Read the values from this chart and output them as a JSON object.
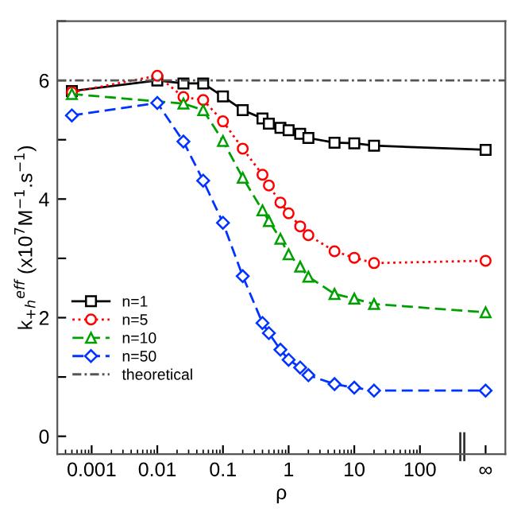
{
  "chart_data": {
    "type": "line",
    "xlabel": "ρ",
    "ylabel": "k$_{+h}$$^{eff}$ (x10$^{7}$M$^{−1}$.s$^{−1}$)",
    "log": "x",
    "xlim": [
      0.0003,
      2000
    ],
    "ylim": [
      -0.3,
      7
    ],
    "xticks": [
      0.001,
      0.01,
      0.1,
      1,
      10,
      100,
      {
        "value": 1000,
        "label": "∞"
      }
    ],
    "yticks": [
      0,
      {
        "value": 1,
        "label": null
      },
      2,
      {
        "value": 3,
        "label": null
      },
      4,
      {
        "value": 5,
        "label": null
      },
      6,
      {
        "value": 7,
        "label": null
      }
    ],
    "grid": false,
    "legend": "bottom left",
    "series": [
      {
        "name": "n=1",
        "color": "#000000",
        "marker": "square",
        "line_style": "solid",
        "x": [
          0.0005,
          0.01,
          0.025,
          0.05,
          0.1,
          0.2,
          0.4,
          0.5,
          0.75,
          1,
          1.5,
          2,
          5,
          10,
          20,
          1000
        ],
        "values": [
          5.82,
          6.0,
          5.95,
          5.95,
          5.73,
          5.5,
          5.36,
          5.27,
          5.2,
          5.16,
          5.1,
          5.03,
          4.95,
          4.94,
          4.9,
          4.83
        ]
      },
      {
        "name": "n=5",
        "color": "#ff0000",
        "marker": "circle",
        "line_style": "dotted",
        "x": [
          0.0005,
          0.01,
          0.025,
          0.05,
          0.1,
          0.2,
          0.4,
          0.5,
          0.75,
          1,
          1.5,
          2,
          5,
          10,
          20,
          1000
        ],
        "values": [
          5.8,
          6.08,
          5.72,
          5.67,
          5.31,
          4.85,
          4.41,
          4.23,
          3.94,
          3.76,
          3.54,
          3.39,
          3.12,
          3.01,
          2.92,
          2.96
        ]
      },
      {
        "name": "n=10",
        "color": "#00a000",
        "marker": "triangle",
        "line_style": "dashed",
        "x": [
          0.0005,
          0.025,
          0.05,
          0.1,
          0.2,
          0.4,
          0.5,
          0.75,
          1,
          1.5,
          2,
          5,
          10,
          20,
          1000
        ],
        "values": [
          5.77,
          5.61,
          5.5,
          4.98,
          4.36,
          3.81,
          3.63,
          3.33,
          3.07,
          2.86,
          2.69,
          2.4,
          2.32,
          2.23,
          2.09
        ]
      },
      {
        "name": "n=50",
        "color": "#0033ff",
        "marker": "diamond",
        "line_style": "dashed",
        "x": [
          0.0005,
          0.01,
          0.025,
          0.05,
          0.1,
          0.2,
          0.4,
          0.5,
          0.75,
          1,
          1.5,
          2,
          5,
          10,
          20,
          1000
        ],
        "values": [
          5.41,
          5.62,
          4.97,
          4.31,
          3.6,
          2.7,
          1.91,
          1.74,
          1.46,
          1.29,
          1.16,
          1.03,
          0.88,
          0.82,
          0.77,
          0.77
        ]
      },
      {
        "name": "theoretical",
        "color": "#555555",
        "marker": "none",
        "line_style": "dotted",
        "x": [
          0.0003,
          2000
        ],
        "values": [
          6,
          6
        ]
      }
    ]
  }
}
